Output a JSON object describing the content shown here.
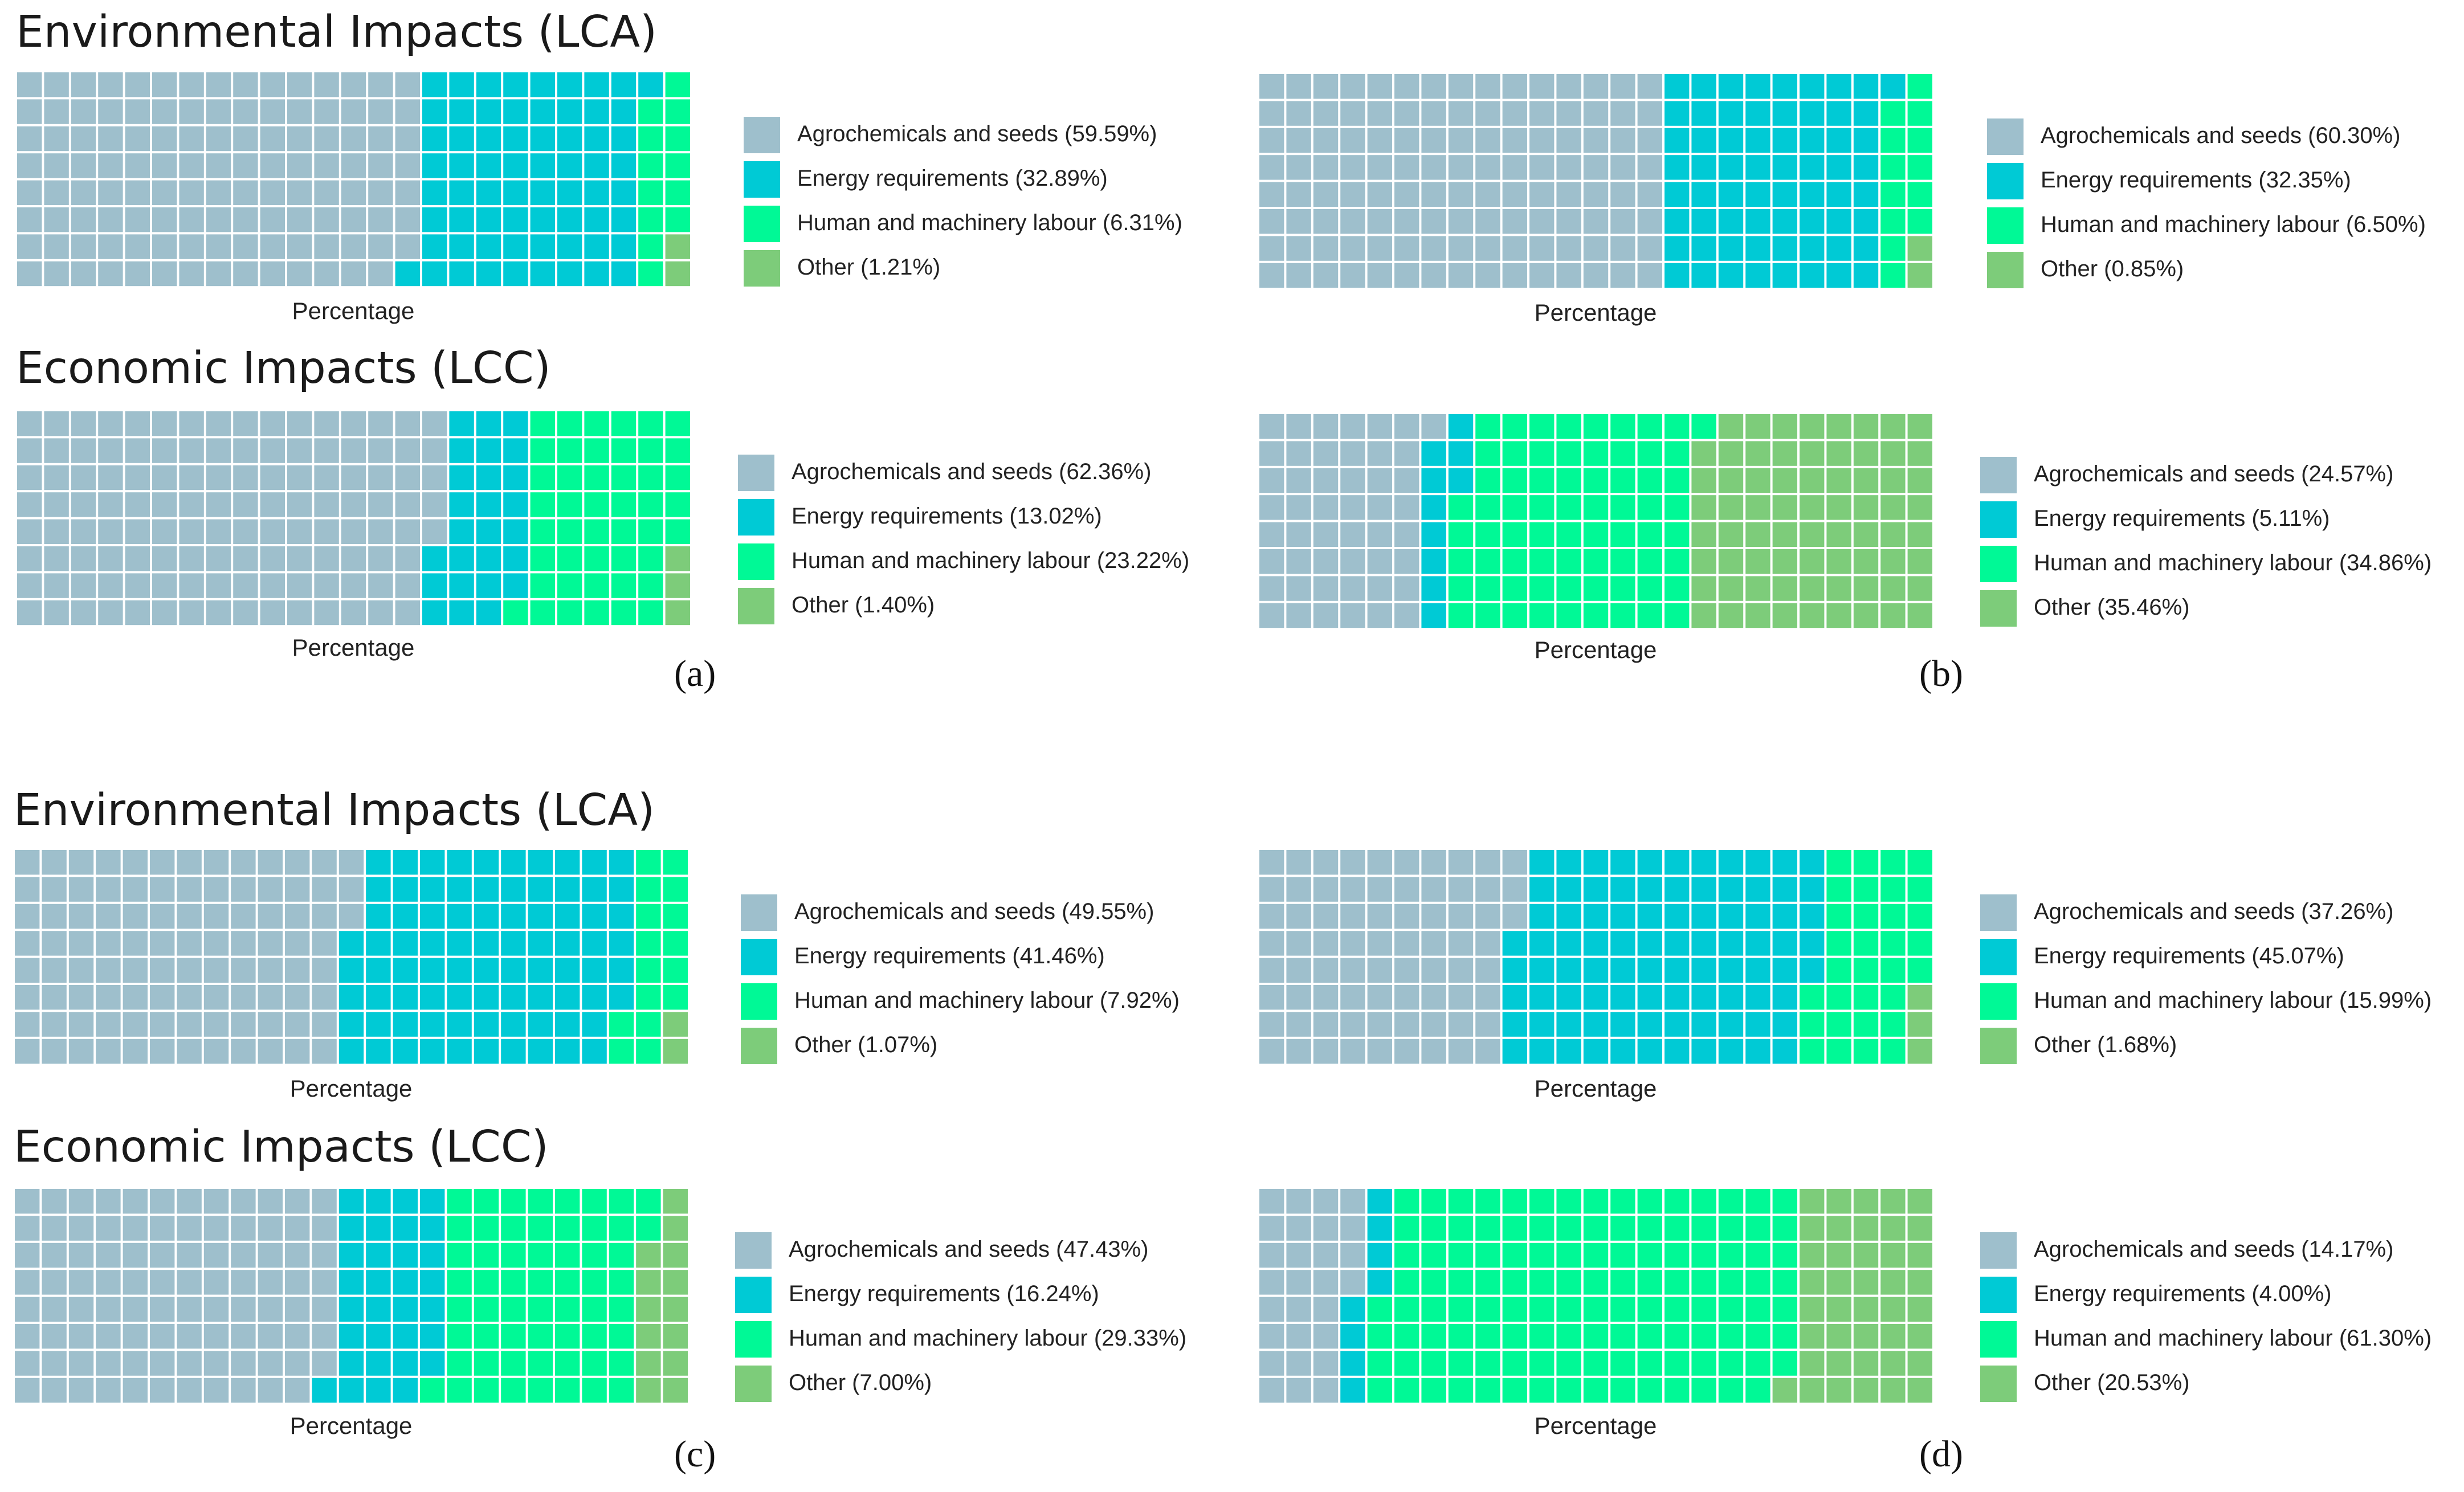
{
  "colors": {
    "agro": "#9ebfcc",
    "energy": "#00cad5",
    "labour": "#00f996",
    "other": "#7dcc7a"
  },
  "chart_data": [
    {
      "panel": "a",
      "kind": "LCA",
      "type": "waffle",
      "title": "Environmental Impacts (LCA)",
      "xlabel": "Percentage",
      "categories": [
        "Agrochemicals and seeds",
        "Energy requirements",
        "Human and machinery labour",
        "Other"
      ],
      "values": [
        59.59,
        32.89,
        6.31,
        1.21
      ],
      "legend": [
        "Agrochemicals and seeds (59.59%)",
        "Energy requirements (32.89%)",
        "Human and machinery labour (6.31%)",
        "Other (1.21%)"
      ]
    },
    {
      "panel": "a",
      "kind": "LCC",
      "type": "waffle",
      "title": "Economic Impacts (LCC)",
      "xlabel": "Percentage",
      "categories": [
        "Agrochemicals and seeds",
        "Energy requirements",
        "Human and machinery labour",
        "Other"
      ],
      "values": [
        62.36,
        13.02,
        23.22,
        1.4
      ],
      "legend": [
        "Agrochemicals and seeds (62.36%)",
        "Energy requirements (13.02%)",
        "Human and machinery labour (23.22%)",
        "Other (1.40%)"
      ]
    },
    {
      "panel": "b",
      "kind": "LCA",
      "type": "waffle",
      "title": "",
      "xlabel": "Percentage",
      "categories": [
        "Agrochemicals and seeds",
        "Energy requirements",
        "Human and machinery labour",
        "Other"
      ],
      "values": [
        60.3,
        32.35,
        6.5,
        0.85
      ],
      "legend": [
        "Agrochemicals and seeds (60.30%)",
        "Energy requirements (32.35%)",
        "Human and machinery labour (6.50%)",
        "Other (0.85%)"
      ]
    },
    {
      "panel": "b",
      "kind": "LCC",
      "type": "waffle",
      "title": "",
      "xlabel": "Percentage",
      "categories": [
        "Agrochemicals and seeds",
        "Energy requirements",
        "Human and machinery labour",
        "Other"
      ],
      "values": [
        24.57,
        5.11,
        34.86,
        35.46
      ],
      "legend": [
        "Agrochemicals and seeds (24.57%)",
        "Energy requirements (5.11%)",
        "Human and machinery labour (34.86%)",
        "Other (35.46%)"
      ]
    },
    {
      "panel": "c",
      "kind": "LCA",
      "type": "waffle",
      "title": "Environmental Impacts (LCA)",
      "xlabel": "Percentage",
      "categories": [
        "Agrochemicals and seeds",
        "Energy requirements",
        "Human and machinery labour",
        "Other"
      ],
      "values": [
        49.55,
        41.46,
        7.92,
        1.07
      ],
      "legend": [
        "Agrochemicals and seeds (49.55%)",
        "Energy requirements (41.46%)",
        "Human and machinery labour (7.92%)",
        "Other (1.07%)"
      ]
    },
    {
      "panel": "c",
      "kind": "LCC",
      "type": "waffle",
      "title": "Economic Impacts (LCC)",
      "xlabel": "Percentage",
      "categories": [
        "Agrochemicals and seeds",
        "Energy requirements",
        "Human and machinery labour",
        "Other"
      ],
      "values": [
        47.43,
        16.24,
        29.33,
        7.0
      ],
      "legend": [
        "Agrochemicals and seeds (47.43%)",
        "Energy requirements (16.24%)",
        "Human and machinery labour (29.33%)",
        "Other (7.00%)"
      ]
    },
    {
      "panel": "d",
      "kind": "LCA",
      "type": "waffle",
      "title": "",
      "xlabel": "Percentage",
      "categories": [
        "Agrochemicals and seeds",
        "Energy requirements",
        "Human and machinery labour",
        "Other"
      ],
      "values": [
        37.26,
        45.07,
        15.99,
        1.68
      ],
      "legend": [
        "Agrochemicals and seeds (37.26%)",
        "Energy requirements (45.07%)",
        "Human and machinery labour (15.99%)",
        "Other (1.68%)"
      ]
    },
    {
      "panel": "d",
      "kind": "LCC",
      "type": "waffle",
      "title": "",
      "xlabel": "Percentage",
      "categories": [
        "Agrochemicals and seeds",
        "Energy requirements",
        "Human and machinery labour",
        "Other"
      ],
      "values": [
        14.17,
        4.0,
        61.3,
        20.53
      ],
      "legend": [
        "Agrochemicals and seeds (14.17%)",
        "Energy requirements (4.00%)",
        "Human and machinery labour (61.30%)",
        "Other (20.53%)"
      ]
    }
  ],
  "panel_labels": [
    "(a)",
    "(b)",
    "(c)",
    "(d)"
  ]
}
